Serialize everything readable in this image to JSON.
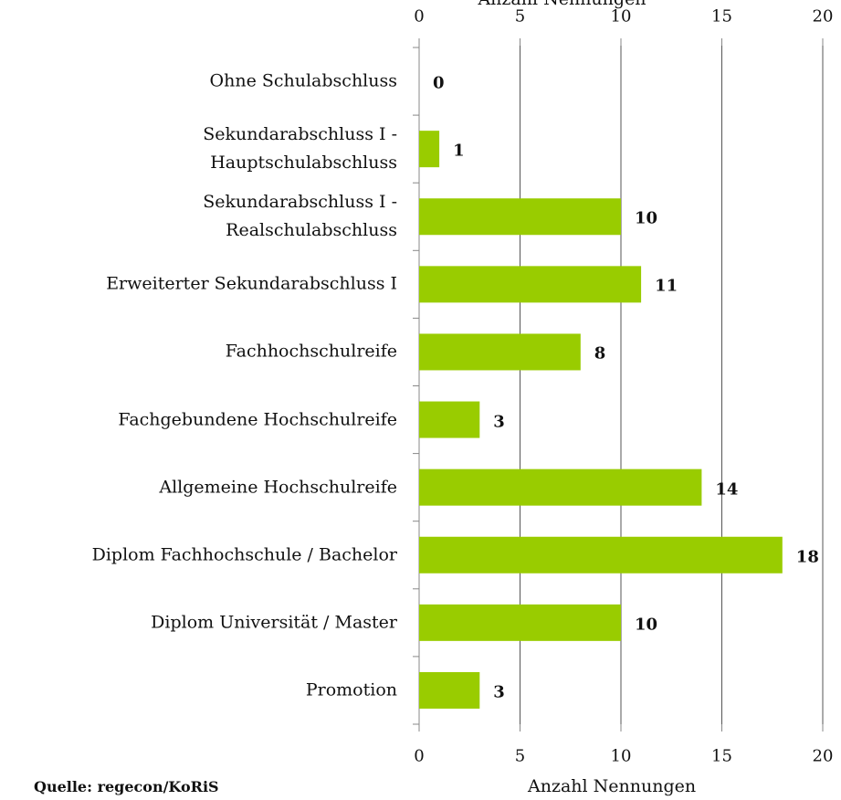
{
  "chart_data": {
    "type": "barh",
    "xlabel_top": "Anzahl Nennungen",
    "xlabel": "Anzahl Nennungen",
    "source": "Quelle: regecon/KoRiS",
    "categories": [
      "Ohne Schulabschluss",
      "Sekundarabschluss I -\nHauptschulabschluss",
      "Sekundarabschluss I -\nRealschulabschluss",
      "Erweiterter Sekundarabschluss I",
      "Fachhochschulreife",
      "Fachgebundene Hochschulreife",
      "Allgemeine Hochschulreife",
      "Diplom Fachhochschule / Bachelor",
      "Diplom Universität / Master",
      "Promotion"
    ],
    "values": [
      0,
      1,
      10,
      11,
      8,
      3,
      14,
      18,
      10,
      3
    ],
    "color": "#99cc00",
    "xlim": [
      0,
      20
    ],
    "xticks": [
      0,
      5,
      10,
      15,
      20
    ],
    "grid": true
  }
}
